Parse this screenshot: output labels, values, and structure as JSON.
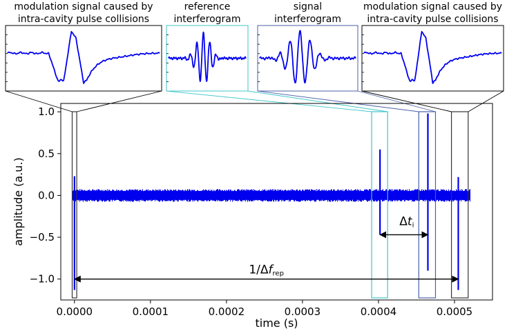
{
  "chart_data": {
    "type": "line",
    "xlabel": "time (s)",
    "ylabel": "amplitude (a.u.)",
    "xlim": [
      -1.8e-05,
      0.00055
    ],
    "ylim": [
      -1.25,
      1.1
    ],
    "x_ticks": [
      0.0,
      0.0001,
      0.0002,
      0.0003,
      0.0004,
      0.0005
    ],
    "x_tick_labels": [
      "0.0000",
      "0.0001",
      "0.0002",
      "0.0003",
      "0.0004",
      "0.0005"
    ],
    "y_ticks": [
      -1.0,
      -0.5,
      0.0,
      0.5,
      1.0
    ],
    "y_tick_labels": [
      "−1.0",
      "−0.5",
      "0.0",
      "0.5",
      "1.0"
    ],
    "grid": false,
    "series": [
      {
        "color": "#0000ee",
        "noise_band": {
          "x": [
            -3e-06,
            0.000521
          ],
          "y": [
            -0.035,
            0.035
          ]
        },
        "spikes": [
          {
            "x": 0.0,
            "y_max": 0.23,
            "y_min": -1.13
          },
          {
            "x": 0.000402,
            "y_max": 0.55,
            "y_min": -0.47
          },
          {
            "x": 0.000465,
            "y_max": 0.98,
            "y_min": -0.9
          },
          {
            "x": 0.000505,
            "y_max": 0.22,
            "y_min": -1.13
          }
        ]
      }
    ],
    "highlight_windows": [
      {
        "x": [
          -3e-06,
          3e-06
        ],
        "color": "#333333"
      },
      {
        "x": [
          0.000391,
          0.000412
        ],
        "color": "#3fc6c9"
      },
      {
        "x": [
          0.000453,
          0.000475
        ],
        "color": "#4a5fa8"
      },
      {
        "x": [
          0.000496,
          0.000518
        ],
        "color": "#333333"
      }
    ],
    "annotations": [
      {
        "label_prefix": "1/Δ",
        "label_var": "f",
        "label_sub": "rep",
        "x_from": 0.0,
        "x_to": 0.000505,
        "y": -1.0
      },
      {
        "label_prefix": "Δ",
        "label_var": "t",
        "label_sub": "i",
        "x_from": 0.000402,
        "x_to": 0.000465,
        "y": -0.47
      }
    ],
    "insets": [
      {
        "title_lines": [
          "modulation signal caused by",
          "intra-cavity pulse collisions"
        ],
        "border_color": "#000000",
        "kind": "collision"
      },
      {
        "title_lines": [
          "reference",
          "interferogram"
        ],
        "border_color": "#3fc6c9",
        "kind": "reference"
      },
      {
        "title_lines": [
          "signal",
          "interferogram"
        ],
        "border_color": "#4a5fa8",
        "kind": "signal"
      },
      {
        "title_lines": [
          "modulation signal caused by",
          "intra-cavity pulse collisions"
        ],
        "border_color": "#000000",
        "kind": "collision"
      }
    ]
  }
}
